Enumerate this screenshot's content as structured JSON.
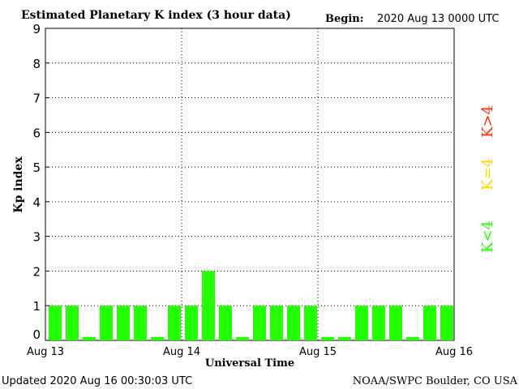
{
  "header": {
    "title": "Estimated Planetary K index (3 hour data)",
    "begin_label": "Begin:",
    "begin_value": "2020 Aug 13 0000 UTC"
  },
  "footer": {
    "updated": "Updated 2020 Aug 16 00:30:03 UTC",
    "source": "NOAA/SWPC Boulder, CO USA"
  },
  "legend": {
    "high": {
      "label": "K>4",
      "color": "#ff2a00"
    },
    "mid": {
      "label": "K=4",
      "color": "#ffd700"
    },
    "low": {
      "label": "K<4",
      "color": "#22ff00"
    }
  },
  "chart_data": {
    "type": "bar",
    "ylabel": "Kp index",
    "xlabel": "Universal Time",
    "ylim": [
      0,
      9
    ],
    "yticks": [
      "0",
      "1",
      "2",
      "3",
      "4",
      "5",
      "6",
      "7",
      "8",
      "9"
    ],
    "xticks": [
      "Aug 13",
      "Aug 14",
      "Aug 15",
      "Aug 16"
    ],
    "grid": true,
    "bar_color": "#22ff00",
    "values": [
      1,
      1,
      0.1,
      1,
      1,
      1,
      0.1,
      1,
      1,
      2,
      1,
      0.1,
      1,
      1,
      1,
      1,
      0.1,
      0.1,
      1,
      1,
      1,
      0.1,
      1,
      1
    ]
  }
}
